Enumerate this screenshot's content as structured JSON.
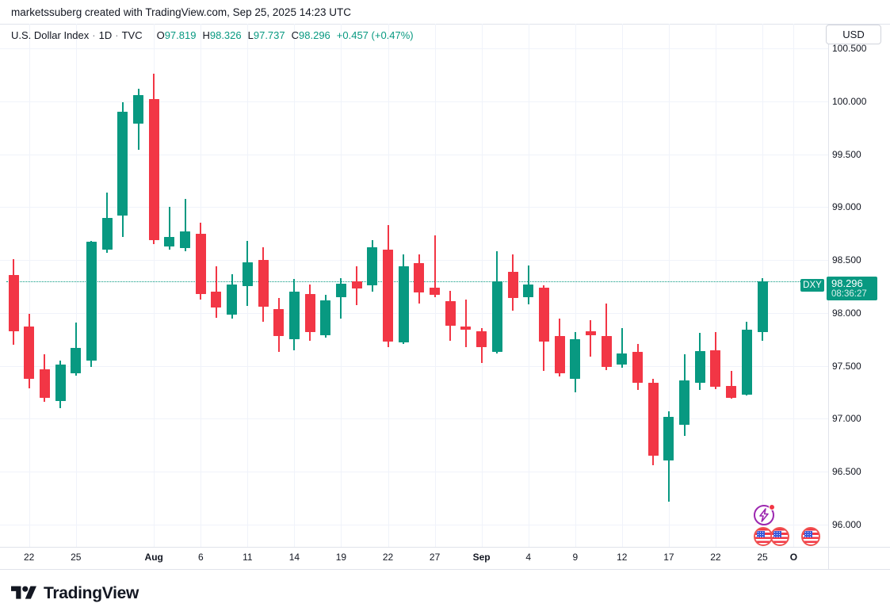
{
  "attribution": "marketssuberg created with TradingView.com, Sep 25, 2025 14:23 UTC",
  "header": {
    "title": "U.S. Dollar Index",
    "sep": "·",
    "interval": "1D",
    "exchange": "TVC",
    "ohlc": [
      {
        "label": "O",
        "value": "97.819"
      },
      {
        "label": "H",
        "value": "98.326"
      },
      {
        "label": "L",
        "value": "97.737"
      },
      {
        "label": "C",
        "value": "98.296"
      }
    ],
    "change": "+0.457 (+0.47%)"
  },
  "price_axis": {
    "currency_button": "USD",
    "labels": [
      "100.500",
      "100.000",
      "99.500",
      "99.000",
      "98.500",
      "98.000",
      "97.500",
      "97.000",
      "96.500",
      "96.000"
    ],
    "price_tag": {
      "symbol": "DXY",
      "price": "98.296",
      "countdown": "08:36:27"
    }
  },
  "time_axis": {
    "ticks": [
      {
        "label": "22",
        "index": 1,
        "bold": false
      },
      {
        "label": "25",
        "index": 4,
        "bold": false
      },
      {
        "label": "Aug",
        "index": 9,
        "bold": true
      },
      {
        "label": "6",
        "index": 12,
        "bold": false
      },
      {
        "label": "11",
        "index": 15,
        "bold": false
      },
      {
        "label": "14",
        "index": 18,
        "bold": false
      },
      {
        "label": "19",
        "index": 21,
        "bold": false
      },
      {
        "label": "22",
        "index": 24,
        "bold": false
      },
      {
        "label": "27",
        "index": 27,
        "bold": false
      },
      {
        "label": "Sep",
        "index": 30,
        "bold": true
      },
      {
        "label": "4",
        "index": 33,
        "bold": false
      },
      {
        "label": "9",
        "index": 36,
        "bold": false
      },
      {
        "label": "12",
        "index": 39,
        "bold": false
      },
      {
        "label": "17",
        "index": 42,
        "bold": false
      },
      {
        "label": "22",
        "index": 45,
        "bold": false
      },
      {
        "label": "25",
        "index": 48,
        "bold": false
      },
      {
        "label": "O",
        "index": 50,
        "bold": true
      }
    ]
  },
  "footer": {
    "brand": "TradingView"
  },
  "colors": {
    "up": "#089981",
    "down": "#f23645",
    "grid": "#f0f3fa",
    "text": "#131722",
    "axis_border": "#e0e3eb",
    "event_purple": "#9c27b0",
    "flag_ring_red": "#ef5350",
    "flag_blue": "#3b5bdb"
  },
  "chart_data": {
    "type": "candlestick",
    "symbol": "U.S. Dollar Index (DXY)",
    "interval": "1D",
    "ylim": [
      96.0,
      100.5
    ],
    "grid": true,
    "last_price_line": 98.296,
    "candles": [
      {
        "date": "Jul 21",
        "o": 98.36,
        "h": 98.51,
        "l": 97.7,
        "c": 97.83
      },
      {
        "date": "Jul 22",
        "o": 97.87,
        "h": 97.99,
        "l": 97.29,
        "c": 97.38
      },
      {
        "date": "Jul 23",
        "o": 97.47,
        "h": 97.61,
        "l": 97.16,
        "c": 97.2
      },
      {
        "date": "Jul 24",
        "o": 97.17,
        "h": 97.55,
        "l": 97.1,
        "c": 97.51
      },
      {
        "date": "Jul 25",
        "o": 97.43,
        "h": 97.91,
        "l": 97.41,
        "c": 97.67
      },
      {
        "date": "Jul 28",
        "o": 97.55,
        "h": 98.68,
        "l": 97.49,
        "c": 98.67
      },
      {
        "date": "Jul 29",
        "o": 98.6,
        "h": 99.14,
        "l": 98.57,
        "c": 98.9
      },
      {
        "date": "Jul 30",
        "o": 98.92,
        "h": 99.99,
        "l": 98.72,
        "c": 99.9
      },
      {
        "date": "Jul 31",
        "o": 99.79,
        "h": 100.12,
        "l": 99.54,
        "c": 100.06
      },
      {
        "date": "Aug 1",
        "o": 100.02,
        "h": 100.26,
        "l": 98.65,
        "c": 98.69
      },
      {
        "date": "Aug 4",
        "o": 98.63,
        "h": 99.0,
        "l": 98.6,
        "c": 98.72
      },
      {
        "date": "Aug 5",
        "o": 98.61,
        "h": 99.08,
        "l": 98.58,
        "c": 98.77
      },
      {
        "date": "Aug 6",
        "o": 98.75,
        "h": 98.85,
        "l": 98.13,
        "c": 98.18
      },
      {
        "date": "Aug 7",
        "o": 98.2,
        "h": 98.44,
        "l": 97.95,
        "c": 98.05
      },
      {
        "date": "Aug 8",
        "o": 97.98,
        "h": 98.37,
        "l": 97.95,
        "c": 98.27
      },
      {
        "date": "Aug 11",
        "o": 98.25,
        "h": 98.68,
        "l": 98.07,
        "c": 98.48
      },
      {
        "date": "Aug 12",
        "o": 98.5,
        "h": 98.62,
        "l": 97.92,
        "c": 98.06
      },
      {
        "date": "Aug 13",
        "o": 98.04,
        "h": 98.14,
        "l": 97.63,
        "c": 97.78
      },
      {
        "date": "Aug 14",
        "o": 97.75,
        "h": 98.32,
        "l": 97.65,
        "c": 98.2
      },
      {
        "date": "Aug 15",
        "o": 98.18,
        "h": 98.27,
        "l": 97.74,
        "c": 97.82
      },
      {
        "date": "Aug 18",
        "o": 97.79,
        "h": 98.17,
        "l": 97.77,
        "c": 98.12
      },
      {
        "date": "Aug 19",
        "o": 98.15,
        "h": 98.33,
        "l": 97.95,
        "c": 98.28
      },
      {
        "date": "Aug 20",
        "o": 98.3,
        "h": 98.44,
        "l": 98.07,
        "c": 98.23
      },
      {
        "date": "Aug 21",
        "o": 98.26,
        "h": 98.69,
        "l": 98.2,
        "c": 98.62
      },
      {
        "date": "Aug 22",
        "o": 98.6,
        "h": 98.83,
        "l": 97.68,
        "c": 97.73
      },
      {
        "date": "Aug 25",
        "o": 97.72,
        "h": 98.55,
        "l": 97.71,
        "c": 98.44
      },
      {
        "date": "Aug 26",
        "o": 98.47,
        "h": 98.55,
        "l": 98.09,
        "c": 98.19
      },
      {
        "date": "Aug 27",
        "o": 98.24,
        "h": 98.73,
        "l": 98.15,
        "c": 98.17
      },
      {
        "date": "Aug 28",
        "o": 98.11,
        "h": 98.21,
        "l": 97.74,
        "c": 97.88
      },
      {
        "date": "Aug 29",
        "o": 97.87,
        "h": 98.13,
        "l": 97.68,
        "c": 97.84
      },
      {
        "date": "Sep 1",
        "o": 97.83,
        "h": 97.86,
        "l": 97.53,
        "c": 97.68
      },
      {
        "date": "Sep 2",
        "o": 97.63,
        "h": 98.58,
        "l": 97.62,
        "c": 98.3
      },
      {
        "date": "Sep 3",
        "o": 98.39,
        "h": 98.55,
        "l": 98.02,
        "c": 98.14
      },
      {
        "date": "Sep 4",
        "o": 98.15,
        "h": 98.45,
        "l": 98.08,
        "c": 98.27
      },
      {
        "date": "Sep 5",
        "o": 98.24,
        "h": 98.26,
        "l": 97.45,
        "c": 97.73
      },
      {
        "date": "Sep 8",
        "o": 97.78,
        "h": 97.95,
        "l": 97.4,
        "c": 97.43
      },
      {
        "date": "Sep 9",
        "o": 97.38,
        "h": 97.82,
        "l": 97.25,
        "c": 97.75
      },
      {
        "date": "Sep 10",
        "o": 97.83,
        "h": 97.93,
        "l": 97.59,
        "c": 97.79
      },
      {
        "date": "Sep 11",
        "o": 97.78,
        "h": 98.09,
        "l": 97.46,
        "c": 97.49
      },
      {
        "date": "Sep 12",
        "o": 97.51,
        "h": 97.86,
        "l": 97.48,
        "c": 97.62
      },
      {
        "date": "Sep 15",
        "o": 97.63,
        "h": 97.71,
        "l": 97.27,
        "c": 97.34
      },
      {
        "date": "Sep 16",
        "o": 97.34,
        "h": 97.38,
        "l": 96.56,
        "c": 96.65
      },
      {
        "date": "Sep 17",
        "o": 96.61,
        "h": 97.07,
        "l": 96.22,
        "c": 97.02
      },
      {
        "date": "Sep 18",
        "o": 96.94,
        "h": 97.61,
        "l": 96.84,
        "c": 97.36
      },
      {
        "date": "Sep 19",
        "o": 97.34,
        "h": 97.81,
        "l": 97.27,
        "c": 97.64
      },
      {
        "date": "Sep 22",
        "o": 97.65,
        "h": 97.82,
        "l": 97.28,
        "c": 97.3
      },
      {
        "date": "Sep 23",
        "o": 97.31,
        "h": 97.45,
        "l": 97.19,
        "c": 97.2
      },
      {
        "date": "Sep 24",
        "o": 97.23,
        "h": 97.92,
        "l": 97.22,
        "c": 97.84
      },
      {
        "date": "Sep 25",
        "o": 97.819,
        "h": 98.326,
        "l": 97.737,
        "c": 98.296
      }
    ]
  }
}
